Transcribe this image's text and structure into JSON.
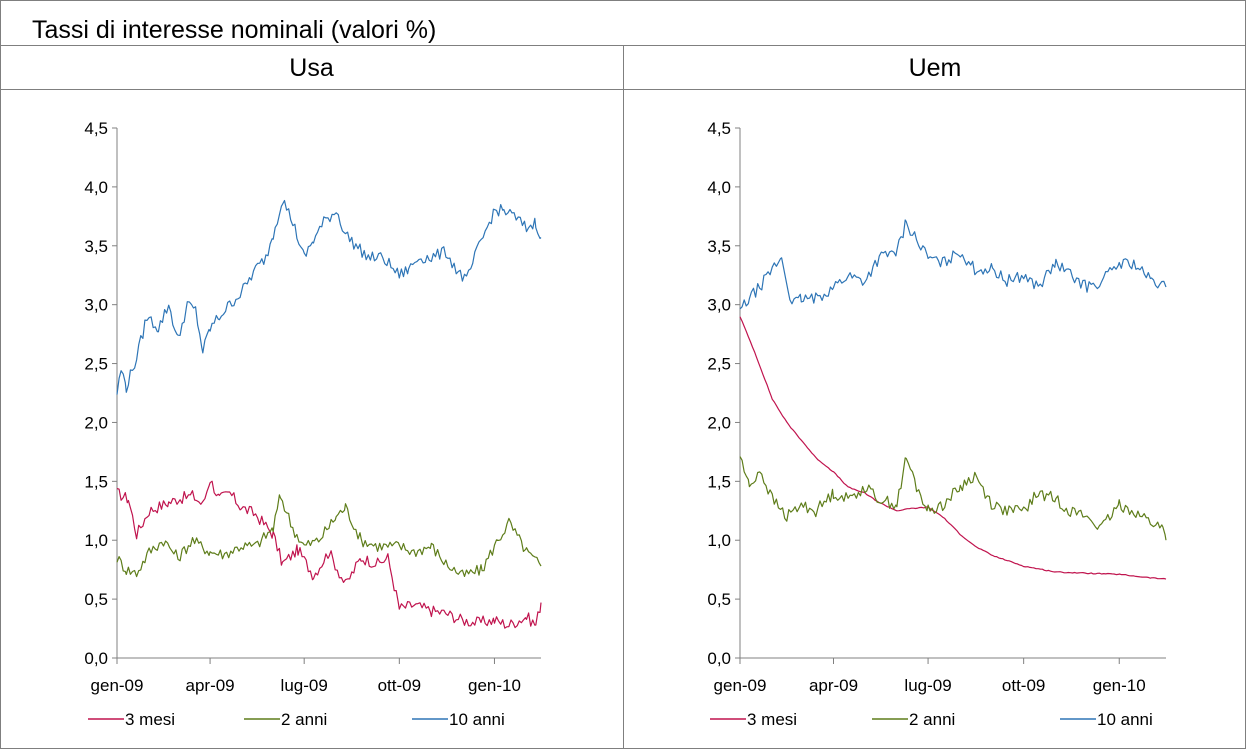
{
  "title": "Tassi di interesse nominali (valori %)",
  "colors": {
    "3 mesi": "#c0144e",
    "2 anni": "#5e7d1a",
    "10 anni": "#2e75b6",
    "axis": "#808080"
  },
  "panels": [
    {
      "heading": "Usa"
    },
    {
      "heading": "Uem"
    }
  ],
  "chart_data": [
    {
      "type": "line",
      "title": "Usa",
      "xlabel": "",
      "ylabel": "",
      "ylim": [
        0,
        4.5
      ],
      "yticks": [
        "0,0",
        "0,5",
        "1,0",
        "1,5",
        "2,0",
        "2,5",
        "3,0",
        "3,5",
        "4,0",
        "4,5"
      ],
      "xticks": [
        "gen-09",
        "apr-09",
        "lug-09",
        "ott-09",
        "gen-10"
      ],
      "xlim": [
        "2009-01-01",
        "2010-02-15"
      ],
      "legend": "bottom",
      "series": [
        {
          "name": "3 mesi",
          "x": [
            "2009-01-01",
            "2009-01-12",
            "2009-01-20",
            "2009-02-01",
            "2009-02-20",
            "2009-03-01",
            "2009-03-15",
            "2009-03-25",
            "2009-04-01",
            "2009-04-10",
            "2009-04-20",
            "2009-05-01",
            "2009-05-15",
            "2009-06-01",
            "2009-06-10",
            "2009-06-25",
            "2009-07-10",
            "2009-07-25",
            "2009-08-10",
            "2009-08-25",
            "2009-09-10",
            "2009-09-20",
            "2009-10-01",
            "2009-10-15",
            "2009-11-01",
            "2009-11-15",
            "2009-12-01",
            "2009-12-15",
            "2010-01-01",
            "2010-01-15",
            "2010-02-01",
            "2010-02-10",
            "2010-02-15"
          ],
          "values": [
            1.4,
            1.35,
            1.05,
            1.25,
            1.32,
            1.35,
            1.38,
            1.3,
            1.52,
            1.35,
            1.4,
            1.28,
            1.22,
            1.05,
            0.8,
            0.92,
            0.7,
            0.9,
            0.62,
            0.85,
            0.8,
            0.85,
            0.42,
            0.45,
            0.4,
            0.38,
            0.32,
            0.3,
            0.32,
            0.28,
            0.35,
            0.28,
            0.47
          ]
        },
        {
          "name": "2 anni",
          "x": [
            "2009-01-01",
            "2009-01-10",
            "2009-01-20",
            "2009-02-01",
            "2009-02-15",
            "2009-03-01",
            "2009-03-15",
            "2009-04-01",
            "2009-04-15",
            "2009-05-01",
            "2009-05-15",
            "2009-06-01",
            "2009-06-08",
            "2009-06-20",
            "2009-07-01",
            "2009-07-15",
            "2009-08-01",
            "2009-08-10",
            "2009-08-25",
            "2009-09-10",
            "2009-10-01",
            "2009-10-15",
            "2009-11-01",
            "2009-11-15",
            "2009-12-01",
            "2009-12-20",
            "2010-01-01",
            "2010-01-15",
            "2010-02-01",
            "2010-02-15"
          ],
          "values": [
            0.85,
            0.75,
            0.72,
            0.9,
            1.0,
            0.85,
            1.0,
            0.9,
            0.88,
            0.95,
            0.95,
            1.1,
            1.38,
            1.1,
            0.95,
            1.0,
            1.2,
            1.28,
            1.0,
            0.95,
            0.95,
            0.9,
            0.95,
            0.8,
            0.7,
            0.75,
            0.95,
            1.15,
            0.9,
            0.78
          ]
        },
        {
          "name": "10 anni",
          "x": [
            "2009-01-01",
            "2009-01-05",
            "2009-01-10",
            "2009-01-20",
            "2009-01-30",
            "2009-02-10",
            "2009-02-20",
            "2009-03-01",
            "2009-03-10",
            "2009-03-18",
            "2009-03-25",
            "2009-04-01",
            "2009-04-10",
            "2009-04-20",
            "2009-05-01",
            "2009-05-15",
            "2009-05-25",
            "2009-06-01",
            "2009-06-10",
            "2009-06-20",
            "2009-07-01",
            "2009-07-10",
            "2009-07-20",
            "2009-08-01",
            "2009-08-10",
            "2009-08-20",
            "2009-09-01",
            "2009-09-15",
            "2009-10-01",
            "2009-10-10",
            "2009-10-20",
            "2009-11-01",
            "2009-11-15",
            "2009-11-25",
            "2009-12-05",
            "2009-12-15",
            "2010-01-01",
            "2010-01-10",
            "2010-01-20",
            "2010-02-01",
            "2010-02-10",
            "2010-02-15"
          ],
          "values": [
            2.25,
            2.45,
            2.3,
            2.55,
            2.9,
            2.8,
            3.0,
            2.7,
            3.0,
            2.95,
            2.6,
            2.8,
            2.9,
            3.0,
            3.1,
            3.3,
            3.4,
            3.6,
            3.9,
            3.7,
            3.4,
            3.55,
            3.7,
            3.8,
            3.6,
            3.5,
            3.4,
            3.4,
            3.25,
            3.3,
            3.4,
            3.4,
            3.45,
            3.3,
            3.2,
            3.45,
            3.8,
            3.8,
            3.75,
            3.65,
            3.7,
            3.57
          ]
        }
      ]
    },
    {
      "type": "line",
      "title": "Uem",
      "xlabel": "",
      "ylabel": "",
      "ylim": [
        0,
        4.5
      ],
      "yticks": [
        "0,0",
        "0,5",
        "1,0",
        "1,5",
        "2,0",
        "2,5",
        "3,0",
        "3,5",
        "4,0",
        "4,5"
      ],
      "xticks": [
        "gen-09",
        "apr-09",
        "lug-09",
        "ott-09",
        "gen-10"
      ],
      "xlim": [
        "2009-01-01",
        "2010-02-15"
      ],
      "legend": "bottom",
      "series": [
        {
          "name": "3 mesi",
          "x": [
            "2009-01-01",
            "2009-01-15",
            "2009-02-01",
            "2009-02-15",
            "2009-03-01",
            "2009-03-15",
            "2009-04-01",
            "2009-04-15",
            "2009-05-01",
            "2009-05-15",
            "2009-06-01",
            "2009-06-15",
            "2009-07-01",
            "2009-07-15",
            "2009-08-01",
            "2009-08-15",
            "2009-09-01",
            "2009-10-01",
            "2009-11-01",
            "2009-12-01",
            "2010-01-01",
            "2010-02-01",
            "2010-02-15"
          ],
          "values": [
            2.9,
            2.6,
            2.2,
            2.0,
            1.85,
            1.7,
            1.58,
            1.45,
            1.4,
            1.32,
            1.25,
            1.27,
            1.28,
            1.2,
            1.05,
            0.95,
            0.87,
            0.78,
            0.73,
            0.72,
            0.71,
            0.68,
            0.67
          ]
        },
        {
          "name": "2 anni",
          "x": [
            "2009-01-01",
            "2009-01-10",
            "2009-01-20",
            "2009-02-01",
            "2009-02-15",
            "2009-03-01",
            "2009-03-15",
            "2009-04-01",
            "2009-04-15",
            "2009-05-01",
            "2009-05-15",
            "2009-06-01",
            "2009-06-10",
            "2009-06-20",
            "2009-07-01",
            "2009-07-15",
            "2009-08-01",
            "2009-08-15",
            "2009-09-01",
            "2009-09-15",
            "2009-10-01",
            "2009-10-15",
            "2009-11-01",
            "2009-11-15",
            "2009-12-01",
            "2009-12-15",
            "2010-01-01",
            "2010-01-15",
            "2010-02-01",
            "2010-02-12",
            "2010-02-15"
          ],
          "values": [
            1.72,
            1.45,
            1.6,
            1.35,
            1.2,
            1.3,
            1.25,
            1.4,
            1.35,
            1.45,
            1.35,
            1.3,
            1.7,
            1.45,
            1.25,
            1.3,
            1.45,
            1.55,
            1.3,
            1.25,
            1.25,
            1.4,
            1.35,
            1.25,
            1.2,
            1.1,
            1.3,
            1.25,
            1.15,
            1.1,
            1.0
          ]
        },
        {
          "name": "10 anni",
          "x": [
            "2009-01-01",
            "2009-01-10",
            "2009-01-20",
            "2009-02-01",
            "2009-02-10",
            "2009-02-20",
            "2009-03-01",
            "2009-03-15",
            "2009-04-01",
            "2009-04-15",
            "2009-05-01",
            "2009-05-15",
            "2009-06-01",
            "2009-06-10",
            "2009-06-20",
            "2009-07-01",
            "2009-07-15",
            "2009-08-01",
            "2009-08-15",
            "2009-09-01",
            "2009-09-15",
            "2009-10-01",
            "2009-10-15",
            "2009-11-01",
            "2009-11-15",
            "2009-12-01",
            "2009-12-15",
            "2010-01-01",
            "2010-01-15",
            "2010-02-01",
            "2010-02-15"
          ],
          "values": [
            2.95,
            3.05,
            3.15,
            3.3,
            3.4,
            3.0,
            3.05,
            3.05,
            3.15,
            3.25,
            3.2,
            3.4,
            3.45,
            3.7,
            3.55,
            3.4,
            3.35,
            3.45,
            3.3,
            3.3,
            3.2,
            3.25,
            3.15,
            3.35,
            3.25,
            3.15,
            3.2,
            3.35,
            3.35,
            3.2,
            3.15
          ]
        }
      ]
    }
  ]
}
